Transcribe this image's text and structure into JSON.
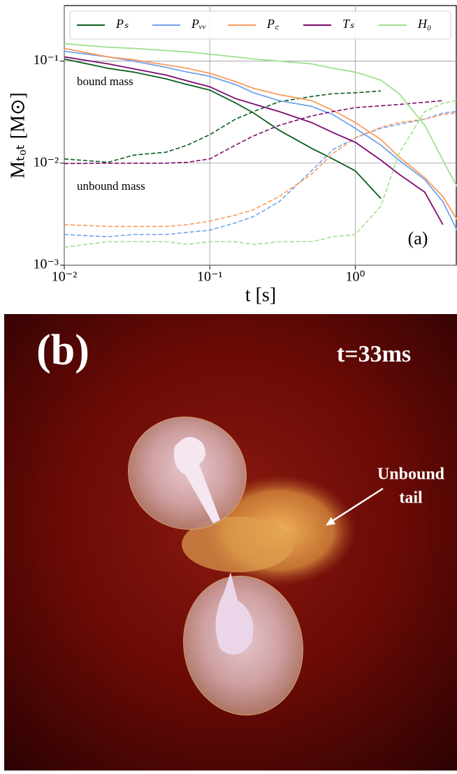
{
  "chart_data": {
    "type": "line",
    "x": [
      0.01,
      0.02,
      0.03,
      0.05,
      0.07,
      0.1,
      0.15,
      0.2,
      0.3,
      0.5,
      0.7,
      1.0,
      1.5,
      2,
      3,
      4,
      5
    ],
    "xlim": [
      0.01,
      5
    ],
    "ylim": [
      0.001,
      0.35
    ],
    "xlog": true,
    "ylog": true,
    "grid": true,
    "legend": "top",
    "xlabel": "t [s]",
    "ylabel": "Mₜₒₜ [M⊙]",
    "xticks": [
      {
        "value": 0.01,
        "label": "10⁻²"
      },
      {
        "value": 0.1,
        "label": "10⁻¹"
      },
      {
        "value": 1,
        "label": "10⁰"
      }
    ],
    "yticks": [
      {
        "value": 0.001,
        "label": "10⁻³"
      },
      {
        "value": 0.01,
        "label": "10⁻²"
      },
      {
        "value": 0.1,
        "label": "10⁻¹"
      }
    ],
    "annotations": [
      "bound mass",
      "unbound mass",
      "(a)"
    ],
    "series": [
      {
        "name": "Pₛ",
        "color": "#0b5e1f",
        "values": [
          0.105,
          0.085,
          0.078,
          0.067,
          0.059,
          0.052,
          0.039,
          0.031,
          0.021,
          0.014,
          0.011,
          0.0084,
          0.0045,
          null,
          null,
          null,
          null
        ],
        "unbound_values": [
          0.011,
          0.0102,
          0.012,
          0.0128,
          0.015,
          0.019,
          0.027,
          0.032,
          0.04,
          0.045,
          0.048,
          0.049,
          0.051,
          null,
          null,
          null,
          null
        ]
      },
      {
        "name": "Pᵥᵥ",
        "color": "#6fa3ee",
        "values": [
          0.125,
          0.11,
          0.1,
          0.087,
          0.078,
          0.071,
          0.059,
          0.049,
          0.041,
          0.036,
          0.03,
          0.022,
          0.015,
          0.0107,
          0.0069,
          0.0042,
          0.0022
        ],
        "unbound_values": [
          0.002,
          0.0019,
          0.002,
          0.002,
          0.0021,
          0.0022,
          0.0026,
          0.003,
          0.0042,
          0.0084,
          0.0135,
          0.0177,
          0.022,
          0.024,
          0.027,
          0.031,
          0.032
        ]
      },
      {
        "name": "P꜀",
        "color": "#fb9a5a",
        "values": [
          0.133,
          0.11,
          0.103,
          0.092,
          0.085,
          0.076,
          0.063,
          0.054,
          0.047,
          0.041,
          0.033,
          0.025,
          0.017,
          0.0115,
          0.0072,
          0.0047,
          0.0028
        ],
        "unbound_values": [
          0.0025,
          0.0024,
          0.0024,
          0.0024,
          0.0025,
          0.0027,
          0.0031,
          0.0035,
          0.0047,
          0.0078,
          0.0124,
          0.0177,
          0.0224,
          0.025,
          0.027,
          0.03,
          0.031
        ]
      },
      {
        "name": "Tₛ",
        "color": "#7c0a6e",
        "values": [
          0.11,
          0.094,
          0.084,
          0.073,
          0.064,
          0.056,
          0.043,
          0.038,
          0.032,
          0.025,
          0.02,
          0.016,
          0.0107,
          0.0078,
          0.0052,
          0.0025,
          null
        ],
        "unbound_values": [
          0.0099,
          0.01,
          0.01,
          0.01,
          0.0102,
          0.011,
          0.015,
          0.0185,
          0.0235,
          0.029,
          0.032,
          0.035,
          0.0365,
          0.0376,
          0.0395,
          0.041,
          null
        ]
      },
      {
        "name": "H₀",
        "color": "#9ee08a",
        "values": [
          0.148,
          0.137,
          0.133,
          0.127,
          0.123,
          0.117,
          0.11,
          0.105,
          0.1,
          0.094,
          0.085,
          0.078,
          0.065,
          0.048,
          0.0235,
          0.0107,
          0.0059
        ],
        "unbound_values": [
          0.0015,
          0.0017,
          0.0017,
          0.0017,
          0.0016,
          0.0017,
          0.0017,
          0.0016,
          0.0017,
          0.0017,
          0.0019,
          0.002,
          0.0038,
          0.0125,
          0.032,
          0.0388,
          0.041
        ]
      }
    ]
  },
  "panel_b": {
    "label": "(b)",
    "time": "t=33ms",
    "annotation": [
      "Unbound",
      "tail"
    ]
  }
}
